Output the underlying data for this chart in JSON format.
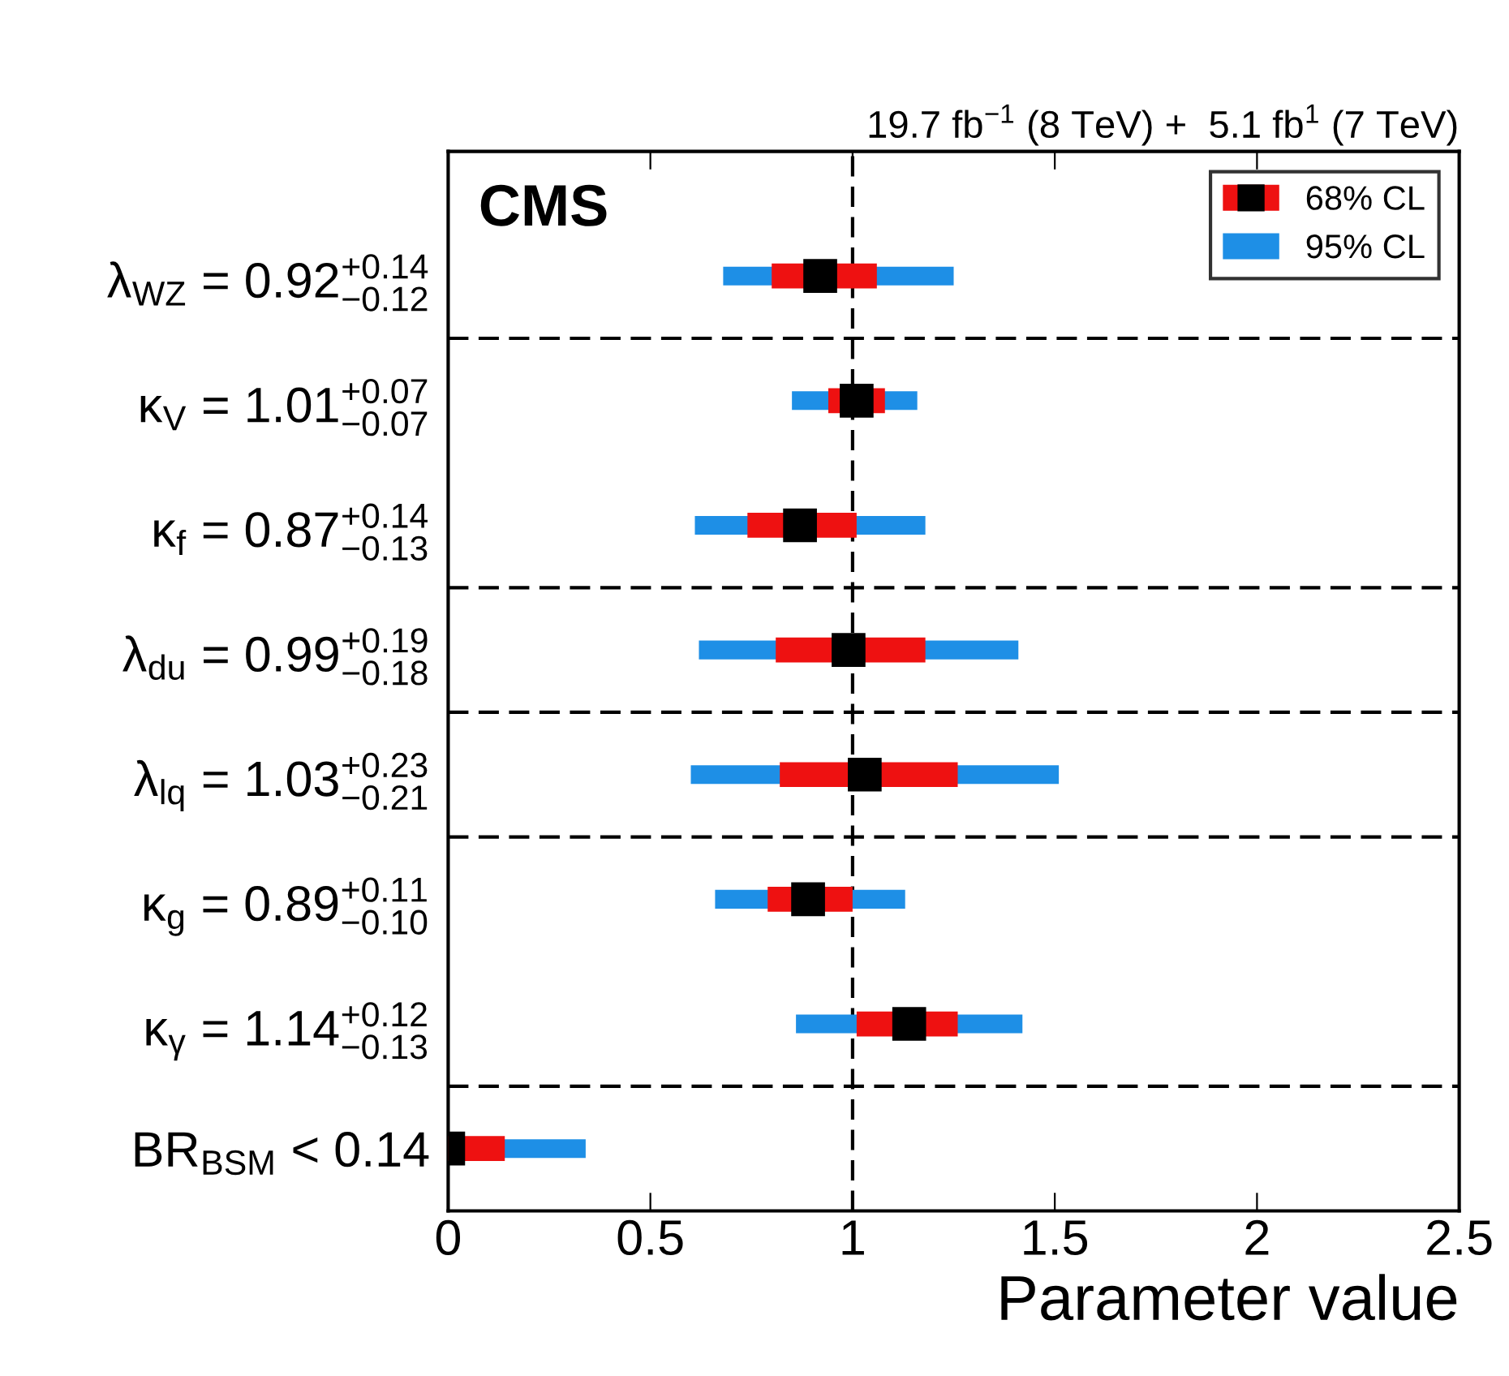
{
  "chart_data": {
    "type": "bar",
    "orientation": "horizontal",
    "title": "19.7 fb$^{−1}$ (8 TeV) +  5.1 fb$^{1}$ (7 TeV)",
    "xlabel": "Parameter value",
    "annotations": [
      "CMS"
    ],
    "categories": [
      "λ$_{WZ}$ = 0.92$^{+0.14}$$_{−0.12}$",
      "κ$_{V}$ = 1.01$^{+0.07}$$_{−0.07}$",
      "κ$_{f}$ = 0.87$^{+0.14}$$_{−0.13}$",
      "λ$_{du}$ = 0.99$^{+0.19}$$_{−0.18}$",
      "λ$_{lq}$ = 1.03$^{+0.23}$$_{−0.21}$",
      "κ$_{g}$ = 0.89$^{+0.11}$$_{−0.10}$",
      "κ$_{γ}$ = 1.14$^{+0.12}$$_{−0.13}$",
      "BR$_{BSM}$ < 0.14"
    ],
    "series": [
      {
        "name": "95% CL",
        "color": "#1e8fe6",
        "base": [
          0.68,
          0.85,
          0.61,
          0.62,
          0.6,
          0.66,
          0.86,
          0
        ],
        "values": [
          0.57,
          0.31,
          0.57,
          0.79,
          0.91,
          0.47,
          0.56,
          0.34
        ]
      },
      {
        "name": "68% CL",
        "color": "#ee1111",
        "base": [
          0.8,
          0.94,
          0.74,
          0.81,
          0.82,
          0.79,
          1.01,
          0
        ],
        "values": [
          0.26,
          0.14,
          0.27,
          0.37,
          0.44,
          0.21,
          0.25,
          0.14
        ]
      },
      {
        "type": "scatter",
        "color": "#000000",
        "marker": "square",
        "values": [
          0.92,
          1.01,
          0.87,
          0.99,
          1.03,
          0.89,
          1.14,
          0
        ]
      }
    ],
    "xlim": [
      0,
      2.5
    ],
    "xticks": [
      0,
      0.5,
      1,
      1.5,
      2,
      2.5
    ],
    "ref_lines": [
      {
        "axis": "x",
        "value": 1,
        "line_style": "dashed"
      }
    ],
    "grid": false,
    "legend": "top right"
  }
}
